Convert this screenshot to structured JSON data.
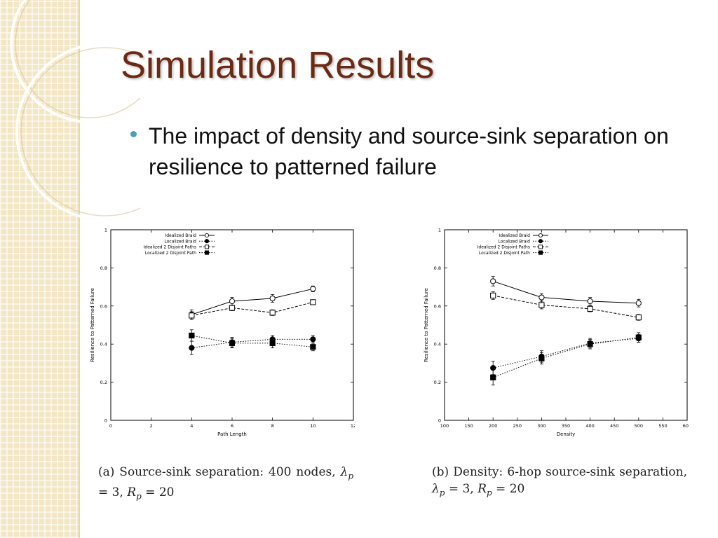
{
  "slide": {
    "title": "Simulation Results",
    "bullet": "The impact of density and source-sink separation on resilience to patterned failure",
    "colors": {
      "title": "#6b2a14",
      "bullet": "#4aa0b5",
      "sidebar": "#f3e6c4"
    }
  },
  "chart_data": [
    {
      "type": "line",
      "xlabel": "Path Length",
      "ylabel": "Resilience to Patterned Failure",
      "xlim": [
        0,
        12
      ],
      "ylim": [
        0,
        1
      ],
      "xticks": [
        0,
        2,
        4,
        6,
        8,
        10,
        12
      ],
      "yticks": [
        0,
        0.2,
        0.4,
        0.6,
        0.8,
        1
      ],
      "x": [
        4,
        6,
        8,
        10
      ],
      "grid": false,
      "legend_position": "top-left",
      "caption": "(a) Source-sink separation: 400 nodes, λp = 3, Rp = 20",
      "series": [
        {
          "name": "Idealized Braid",
          "marker": "circle-open",
          "dash": "solid",
          "values": [
            0.555,
            0.625,
            0.64,
            0.69
          ],
          "errors": [
            0.025,
            0.02,
            0.02,
            0.015
          ]
        },
        {
          "name": "Localized Braid",
          "marker": "circle-filled",
          "dash": "dotted",
          "values": [
            0.38,
            0.41,
            0.425,
            0.425
          ],
          "errors": [
            0.035,
            0.025,
            0.02,
            0.02
          ]
        },
        {
          "name": "Idealized 2 Disjoint Paths",
          "marker": "square-open",
          "dash": "dashed",
          "values": [
            0.55,
            0.59,
            0.565,
            0.62
          ],
          "errors": [
            0.02,
            0.015,
            0.015,
            0.01
          ]
        },
        {
          "name": "Localized 2 Disjoint Path",
          "marker": "square-filled",
          "dash": "dotted",
          "values": [
            0.445,
            0.405,
            0.405,
            0.385
          ],
          "errors": [
            0.03,
            0.025,
            0.025,
            0.02
          ]
        }
      ]
    },
    {
      "type": "line",
      "xlabel": "Density",
      "ylabel": "Resilience to Patterned Failure",
      "xlim": [
        100,
        600
      ],
      "ylim": [
        0,
        1
      ],
      "xticks": [
        100,
        150,
        200,
        250,
        300,
        350,
        400,
        450,
        500,
        550,
        600
      ],
      "yticks": [
        0,
        0.2,
        0.4,
        0.6,
        0.8,
        1
      ],
      "x": [
        200,
        300,
        400,
        500
      ],
      "grid": false,
      "legend_position": "top-left",
      "caption": "(b) Density: 6-hop source-sink separation, λp = 3, Rp = 20",
      "series": [
        {
          "name": "Idealized Braid",
          "marker": "circle-open",
          "dash": "solid",
          "values": [
            0.73,
            0.645,
            0.625,
            0.615
          ],
          "errors": [
            0.025,
            0.02,
            0.02,
            0.02
          ]
        },
        {
          "name": "Localized Braid",
          "marker": "circle-filled",
          "dash": "dotted",
          "values": [
            0.275,
            0.335,
            0.405,
            0.43
          ],
          "errors": [
            0.035,
            0.03,
            0.025,
            0.02
          ]
        },
        {
          "name": "Idealized 2 Disjoint Paths",
          "marker": "square-open",
          "dash": "dashed",
          "values": [
            0.655,
            0.605,
            0.585,
            0.54
          ],
          "errors": [
            0.02,
            0.02,
            0.015,
            0.015
          ]
        },
        {
          "name": "Localized 2 Disjoint Path",
          "marker": "square-filled",
          "dash": "dotted",
          "values": [
            0.225,
            0.325,
            0.4,
            0.435
          ],
          "errors": [
            0.04,
            0.03,
            0.025,
            0.025
          ]
        }
      ]
    }
  ]
}
